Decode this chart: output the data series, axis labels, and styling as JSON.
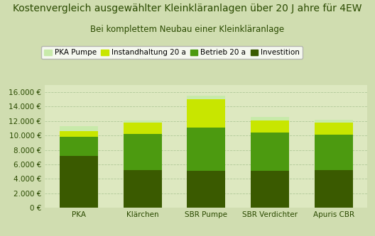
{
  "title": "Kostenvergleich ausgewählter Kleinkläranlagen über 20 J ahre für 4EW",
  "subtitle": "Bei komplettem Neubau einer Kleinkläranlage",
  "categories": [
    "PKA",
    "Klärchen",
    "SBR Pumpe",
    "SBR Verdichter",
    "Apuris CBR"
  ],
  "series": {
    "Investition": [
      7200,
      5200,
      5100,
      5100,
      5200
    ],
    "Betrieb 20 a": [
      2600,
      5000,
      6000,
      5300,
      4900
    ],
    "Instandhaltung 20 a": [
      800,
      1600,
      3900,
      1700,
      1700
    ],
    "PKA Pumpe": [
      700,
      300,
      500,
      500,
      400
    ]
  },
  "colors": {
    "Investition": "#3a5a00",
    "Betrieb 20 a": "#4c9a10",
    "Instandhaltung 20 a": "#c8e600",
    "PKA Pumpe": "#c8eaaa"
  },
  "ylim": [
    0,
    17000
  ],
  "yticks": [
    0,
    2000,
    4000,
    6000,
    8000,
    10000,
    12000,
    14000,
    16000
  ],
  "ytick_labels": [
    "0 €",
    "2.000 €",
    "4.000 €",
    "6.000 €",
    "8.000 €",
    "10.000 €",
    "12.000 €",
    "14.000 €",
    "16.000 €"
  ],
  "background_color": "#d0ddb0",
  "plot_background": "#dde8c0",
  "grid_color": "#b0c898",
  "bar_width": 0.6,
  "title_fontsize": 10,
  "subtitle_fontsize": 8.5,
  "tick_fontsize": 7.5,
  "legend_fontsize": 7.5,
  "title_color": "#2a4a00",
  "tick_color": "#2a4a00"
}
